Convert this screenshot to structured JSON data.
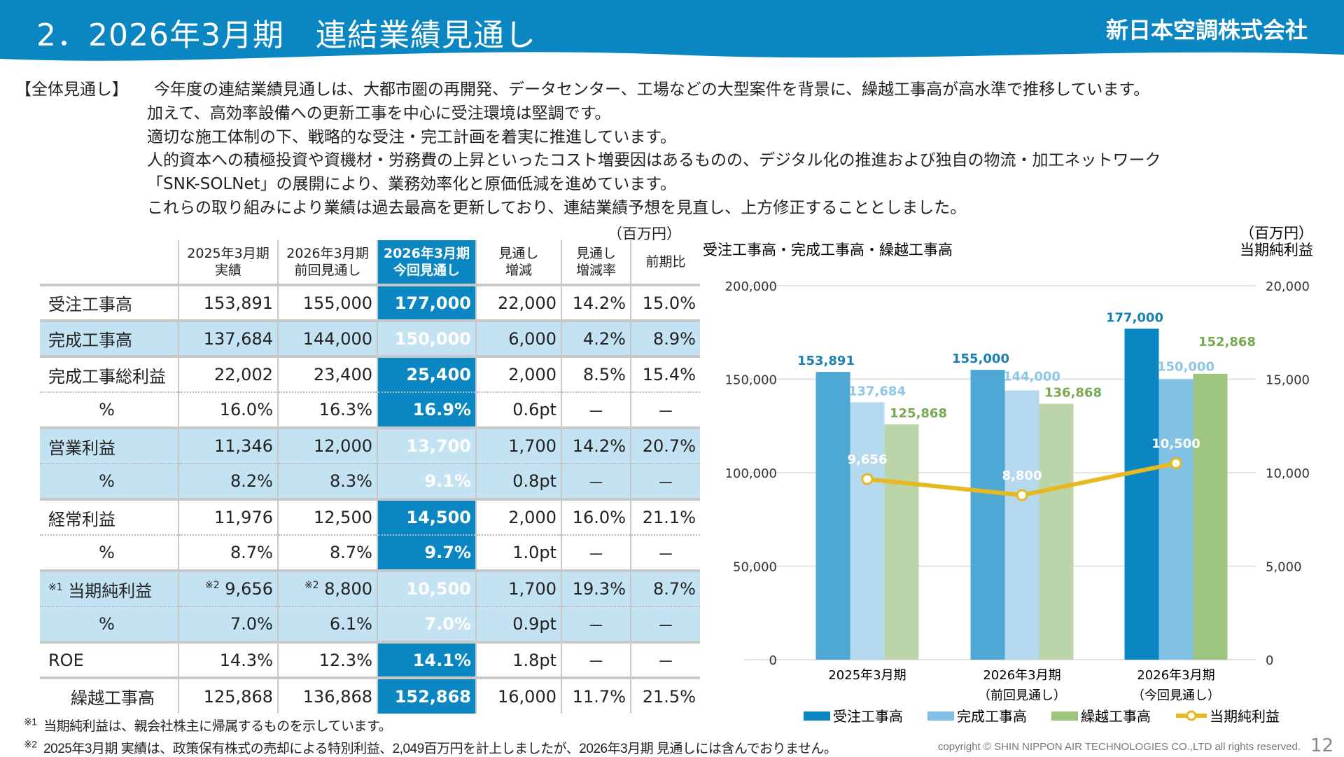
{
  "header": {
    "title": "2．2026年3月期　連結業績見通し",
    "company": "新日本空調株式会社",
    "color": "#0a86c2"
  },
  "intro": {
    "label": "【全体見通し】",
    "lines": [
      "今年度の連結業績見通しは、大都市圏の再開発、データセンター、工場などの大型案件を背景に、繰越工事高が高水準で推移しています。",
      "加えて、高効率設備への更新工事を中心に受注環境は堅調です。",
      "適切な施工体制の下、戦略的な受注・完工計画を着実に推進しています。",
      "人的資本への積極投資や資機材・労務費の上昇といったコスト増要因はあるものの、デジタル化の推進および独自の物流・加工ネットワーク",
      "「SNK-SOLNet」の展開により、業務効率化と原価低減を進めています。",
      "これらの取り組みにより業績は過去最高を更新しており、連結業績予想を見直し、上方修正することとしました。"
    ]
  },
  "table": {
    "unit": "（百万円）",
    "headers": [
      [
        "",
        ""
      ],
      [
        "2025年3月期",
        "実績"
      ],
      [
        "2026年3月期",
        "前回見通し"
      ],
      [
        "2026年3月期",
        "今回見通し"
      ],
      [
        "見通し",
        "増減"
      ],
      [
        "見通し",
        "増減率"
      ],
      [
        "前期比",
        ""
      ]
    ],
    "rows": [
      {
        "label": "受注工事高",
        "cells": [
          "153,891",
          "155,000",
          "177,000",
          "22,000",
          "14.2%",
          "15.0%"
        ]
      },
      {
        "label": "完成工事高",
        "cells": [
          "137,684",
          "144,000",
          "150,000",
          "6,000",
          "4.2%",
          "8.9%"
        ]
      },
      {
        "label": "完成工事総利益",
        "cells": [
          "22,002",
          "23,400",
          "25,400",
          "2,000",
          "8.5%",
          "15.4%"
        ]
      },
      {
        "label": "%",
        "cells": [
          "16.0%",
          "16.3%",
          "16.9%",
          "0.6pt",
          "－",
          "－"
        ]
      },
      {
        "label": "営業利益",
        "cells": [
          "11,346",
          "12,000",
          "13,700",
          "1,700",
          "14.2%",
          "20.7%"
        ]
      },
      {
        "label": "%",
        "cells": [
          "8.2%",
          "8.3%",
          "9.1%",
          "0.8pt",
          "－",
          "－"
        ]
      },
      {
        "label": "経常利益",
        "cells": [
          "11,976",
          "12,500",
          "14,500",
          "2,000",
          "16.0%",
          "21.1%"
        ]
      },
      {
        "label": "%",
        "cells": [
          "8.7%",
          "8.7%",
          "9.7%",
          "1.0pt",
          "－",
          "－"
        ]
      },
      {
        "label": "当期純利益",
        "label_note": "※1",
        "cells": [
          {
            "note": "※2",
            "value": "9,656"
          },
          {
            "note": "※2",
            "value": "8,800"
          },
          "10,500",
          "1,700",
          "19.3%",
          "8.7%"
        ]
      },
      {
        "label": "%",
        "cells": [
          "7.0%",
          "6.1%",
          "7.0%",
          "0.9pt",
          "－",
          "－"
        ]
      },
      {
        "label": "ROE",
        "cells": [
          "14.3%",
          "12.3%",
          "14.1%",
          "1.8pt",
          "－",
          "－"
        ]
      },
      {
        "label": "繰越工事高",
        "cells": [
          "125,868",
          "136,868",
          "152,868",
          "16,000",
          "11.7%",
          "21.5%"
        ]
      }
    ]
  },
  "footnotes": [
    {
      "mark": "※1",
      "text": "当期純利益は、親会社株主に帰属するものを示しています。"
    },
    {
      "mark": "※2",
      "text": "2025年3月期 実績は、政策保有株式の売却による特別利益、2,049百万円を計上しましたが、2026年3月期 見通しには含んでおりません。"
    }
  ],
  "copyright": "copyright © SHIN NIPPON AIR TECHNOLOGIES CO.,LTD  all rights reserved.",
  "page_number": "12",
  "chart_data": {
    "type": "bar+line",
    "title": "受注工事高・完成工事高・繰越工事高",
    "right_title": "当期純利益",
    "unit": "（百万円）",
    "categories": [
      [
        "2025年3月期",
        ""
      ],
      [
        "2026年3月期",
        "（前回見通し）"
      ],
      [
        "2026年3月期",
        "（今回見通し）"
      ]
    ],
    "ylim": [
      0,
      200000
    ],
    "yticks": [
      "0",
      "50,000",
      "100,000",
      "150,000",
      "200,000"
    ],
    "y2lim": [
      0,
      20000
    ],
    "y2ticks": [
      "0",
      "5,000",
      "10,000",
      "15,000",
      "20,000"
    ],
    "grid": true,
    "legend": "bottom",
    "series": [
      {
        "name": "受注工事高",
        "type": "bar",
        "values": [
          153891,
          155000,
          177000
        ],
        "labels": [
          "153,891",
          "155,000",
          "177,000"
        ],
        "colors": [
          "#4ea8d4",
          "#4ea8d4",
          "#0a86c2"
        ],
        "label_color": "#1a7fb2",
        "legend_color": "#0a86c2"
      },
      {
        "name": "完成工事高",
        "type": "bar",
        "values": [
          137684,
          144000,
          150000
        ],
        "labels": [
          "137,684",
          "144,000",
          "150,000"
        ],
        "colors": [
          "#b4d9ee",
          "#b4d9ee",
          "#80c1e4"
        ],
        "label_color": "#8ec6e6",
        "legend_color": "#80c1e4"
      },
      {
        "name": "繰越工事高",
        "type": "bar",
        "values": [
          125868,
          136868,
          152868
        ],
        "labels": [
          "125,868",
          "136,868",
          "152,868"
        ],
        "colors": [
          "#bcd5a8",
          "#bcd5a8",
          "#9ec580"
        ],
        "label_color": "#78a850",
        "legend_color": "#9ec580"
      },
      {
        "name": "当期純利益",
        "type": "line",
        "axis": "right",
        "values": [
          9656,
          8800,
          10500
        ],
        "labels": [
          "9,656",
          "8,800",
          "10,500"
        ],
        "color": "#e8b820",
        "label_color": "#ffffff"
      }
    ]
  }
}
